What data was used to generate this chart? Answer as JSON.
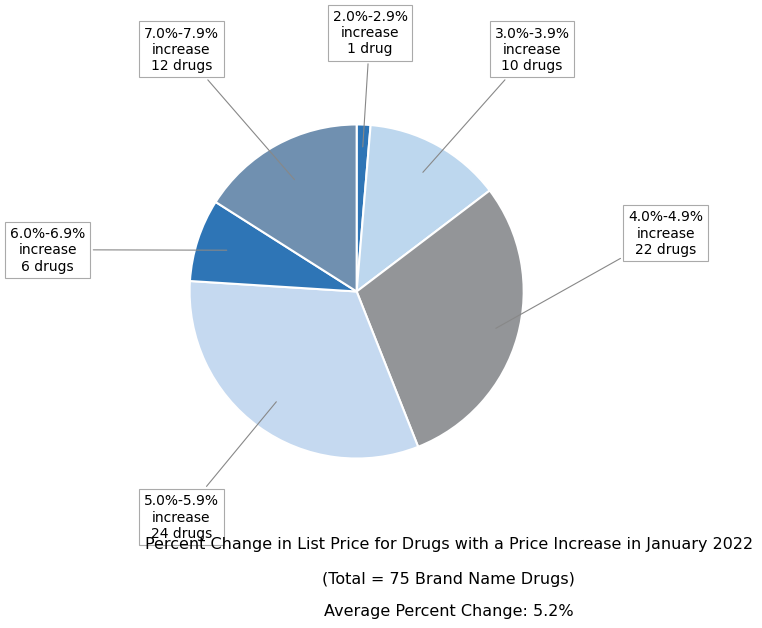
{
  "slices": [
    {
      "label": "2.0%-2.9%\nincrease\n1 drug",
      "value": 1,
      "color": "#2e75b6"
    },
    {
      "label": "3.0%-3.9%\nincrease\n10 drugs",
      "value": 10,
      "color": "#bdd7ee"
    },
    {
      "label": "4.0%-4.9%\nincrease\n22 drugs",
      "value": 22,
      "color": "#939598"
    },
    {
      "label": "5.0%-5.9%\nincrease\n24 drugs",
      "value": 24,
      "color": "#c5d9f0"
    },
    {
      "label": "6.0%-6.9%\nincrease\n6 drugs",
      "value": 6,
      "color": "#2e75b6"
    },
    {
      "label": "7.0%-7.9%\nincrease\n12 drugs",
      "value": 12,
      "color": "#7090b0"
    }
  ],
  "caption_line1": "Percent Change in List Price for Drugs with a Price Increase in January 2022",
  "caption_line2": "(Total = 75 Brand Name Drugs)",
  "caption_line3": "Average Percent Change: 5.2%",
  "background_color": "#ffffff",
  "annotation_font_size": 10,
  "caption_font_size": 11.5
}
